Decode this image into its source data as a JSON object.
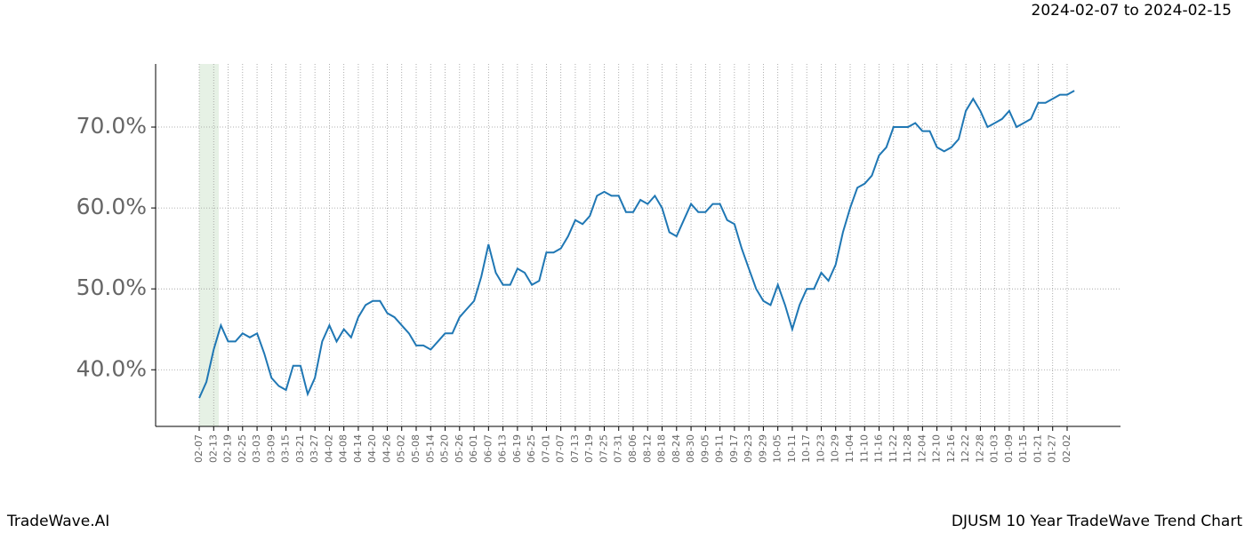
{
  "chart_data": {
    "type": "line",
    "title": "DJUSM 10 Year TradeWave Trend Chart",
    "subtitle": "2024-02-07 to 2024-02-15",
    "watermark": "TradeWave.AI",
    "categories": [
      "02-07",
      null,
      "02-13",
      null,
      "02-19",
      null,
      "02-25",
      null,
      "03-03",
      null,
      "03-09",
      null,
      "03-15",
      null,
      "03-21",
      null,
      "03-27",
      null,
      "04-02",
      null,
      "04-08",
      null,
      "04-14",
      null,
      "04-20",
      null,
      "04-26",
      null,
      "05-02",
      null,
      "05-08",
      null,
      "05-14",
      null,
      "05-20",
      null,
      "05-26",
      null,
      "06-01",
      null,
      "06-07",
      null,
      "06-13",
      null,
      "06-19",
      null,
      "06-25",
      null,
      "07-01",
      null,
      "07-07",
      null,
      "07-13",
      null,
      "07-19",
      null,
      "07-25",
      null,
      "07-31",
      null,
      "08-06",
      null,
      "08-12",
      null,
      "08-18",
      null,
      "08-24",
      null,
      "08-30",
      null,
      "09-05",
      null,
      "09-11",
      null,
      "09-17",
      null,
      "09-23",
      null,
      "09-29",
      null,
      "10-05",
      null,
      "10-11",
      null,
      "10-17",
      null,
      "10-23",
      null,
      "10-29",
      null,
      "11-04",
      null,
      "11-10",
      null,
      "11-16",
      null,
      "11-22",
      null,
      "11-28",
      null,
      "12-04",
      null,
      "12-10",
      null,
      "12-16",
      null,
      "12-22",
      null,
      "12-28",
      null,
      "01-03",
      null,
      "01-09",
      null,
      "01-15",
      null,
      "01-21",
      null,
      "01-27",
      null,
      "02-02",
      null
    ],
    "series": [
      {
        "color": "#1f77b4",
        "values": [
          36.5,
          38.5,
          42.5,
          45.5,
          43.5,
          43.5,
          44.5,
          44,
          44.5,
          42,
          39,
          38,
          37.5,
          40.5,
          40.5,
          37,
          39,
          43.5,
          45.5,
          43.5,
          45,
          44,
          46.5,
          48,
          48.5,
          48.5,
          47,
          46.5,
          45.5,
          44.5,
          43,
          43,
          42.5,
          43.5,
          44.5,
          44.5,
          46.5,
          47.5,
          48.5,
          51.5,
          55.5,
          52,
          50.5,
          50.5,
          52.5,
          52,
          50.5,
          51,
          54.5,
          54.5,
          55,
          56.5,
          58.5,
          58,
          59,
          61.5,
          62,
          61.5,
          61.5,
          59.5,
          59.5,
          61,
          60.5,
          61.5,
          60,
          57,
          56.5,
          58.5,
          60.5,
          59.5,
          59.5,
          60.5,
          60.5,
          58.5,
          58,
          55,
          52.5,
          50,
          48.5,
          48,
          50.5,
          48,
          45,
          48,
          50,
          50,
          52,
          51,
          53,
          57,
          60,
          62.5,
          63,
          64,
          66.5,
          67.5,
          70,
          70,
          70,
          70.5,
          69.5,
          69.5,
          67.5,
          67,
          67.5,
          68.5,
          72,
          73.5,
          72,
          70,
          70.5,
          71,
          72,
          70,
          70.5,
          71,
          73,
          73,
          73.5,
          74,
          74,
          74.5
        ]
      }
    ],
    "ylim": [
      33,
      77.8
    ],
    "yticks": [
      {
        "value": 40,
        "label": "40.0%"
      },
      {
        "value": 50,
        "label": "50.0%"
      },
      {
        "value": 60,
        "label": "60.0%"
      },
      {
        "value": 70,
        "label": "70.0%"
      }
    ],
    "grid": true
  }
}
